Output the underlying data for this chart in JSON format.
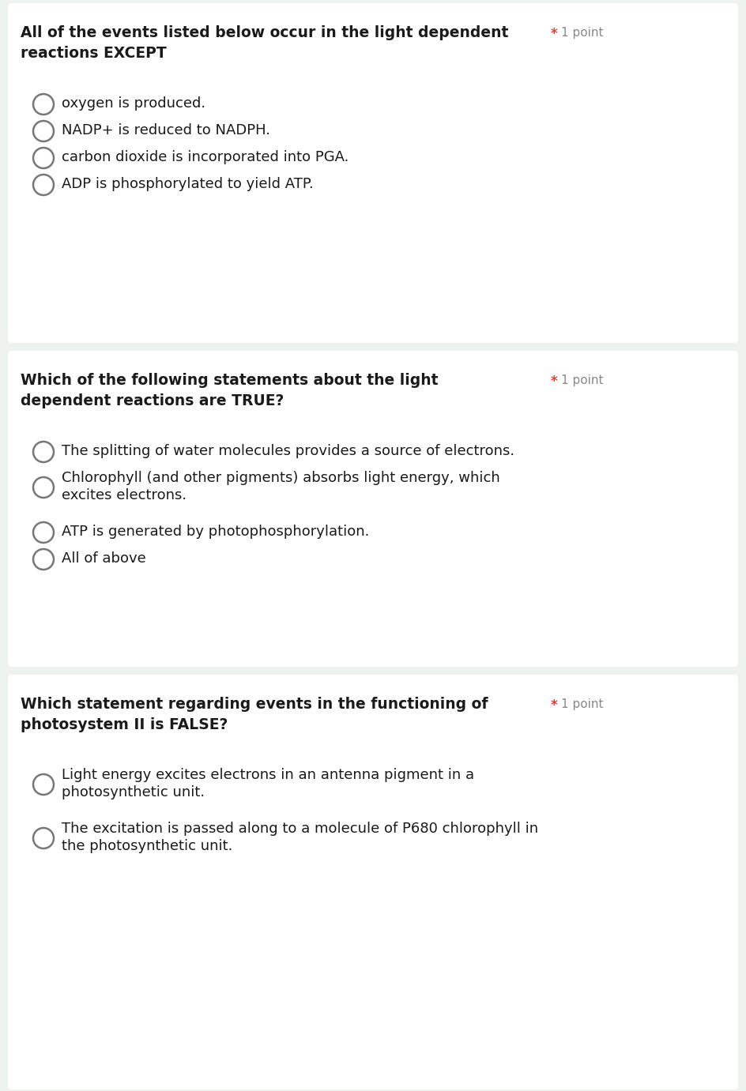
{
  "background_color": "#eef2ee",
  "card_bg": "#ffffff",
  "questions": [
    {
      "question_lines": [
        "All of the events listed below occur in the light dependent",
        "reactions EXCEPT"
      ],
      "point_label": "1 point",
      "options": [
        {
          "lines": [
            "oxygen is produced."
          ],
          "n": 1
        },
        {
          "lines": [
            "NADP+ is reduced to NADPH."
          ],
          "n": 1
        },
        {
          "lines": [
            "carbon dioxide is incorporated into PGA."
          ],
          "n": 1
        },
        {
          "lines": [
            "ADP is phosphorylated to yield ATP."
          ],
          "n": 1
        }
      ]
    },
    {
      "question_lines": [
        "Which of the following statements about the light",
        "dependent reactions are TRUE?"
      ],
      "point_label": "1 point",
      "options": [
        {
          "lines": [
            "The splitting of water molecules provides a source of electrons."
          ],
          "n": 1
        },
        {
          "lines": [
            "Chlorophyll (and other pigments) absorbs light energy, which",
            "excites electrons."
          ],
          "n": 2
        },
        {
          "lines": [
            "ATP is generated by photophosphorylation."
          ],
          "n": 1
        },
        {
          "lines": [
            "All of above"
          ],
          "n": 1
        }
      ]
    },
    {
      "question_lines": [
        "Which statement regarding events in the functioning of",
        "photosystem II is FALSE?"
      ],
      "point_label": "1 point",
      "options": [
        {
          "lines": [
            "Light energy excites electrons in an antenna pigment in a",
            "photosynthetic unit."
          ],
          "n": 2
        },
        {
          "lines": [
            "The excitation is passed along to a molecule of P680 chlorophyll in",
            "the photosynthetic unit."
          ],
          "n": 2
        }
      ]
    }
  ],
  "question_font_size": 13.5,
  "option_font_size": 13,
  "point_font_size": 11,
  "text_color": "#1a1a1a",
  "point_color": "#888888",
  "star_color": "#e53935",
  "circle_edge_color": "#777777",
  "circle_linewidth": 1.8
}
